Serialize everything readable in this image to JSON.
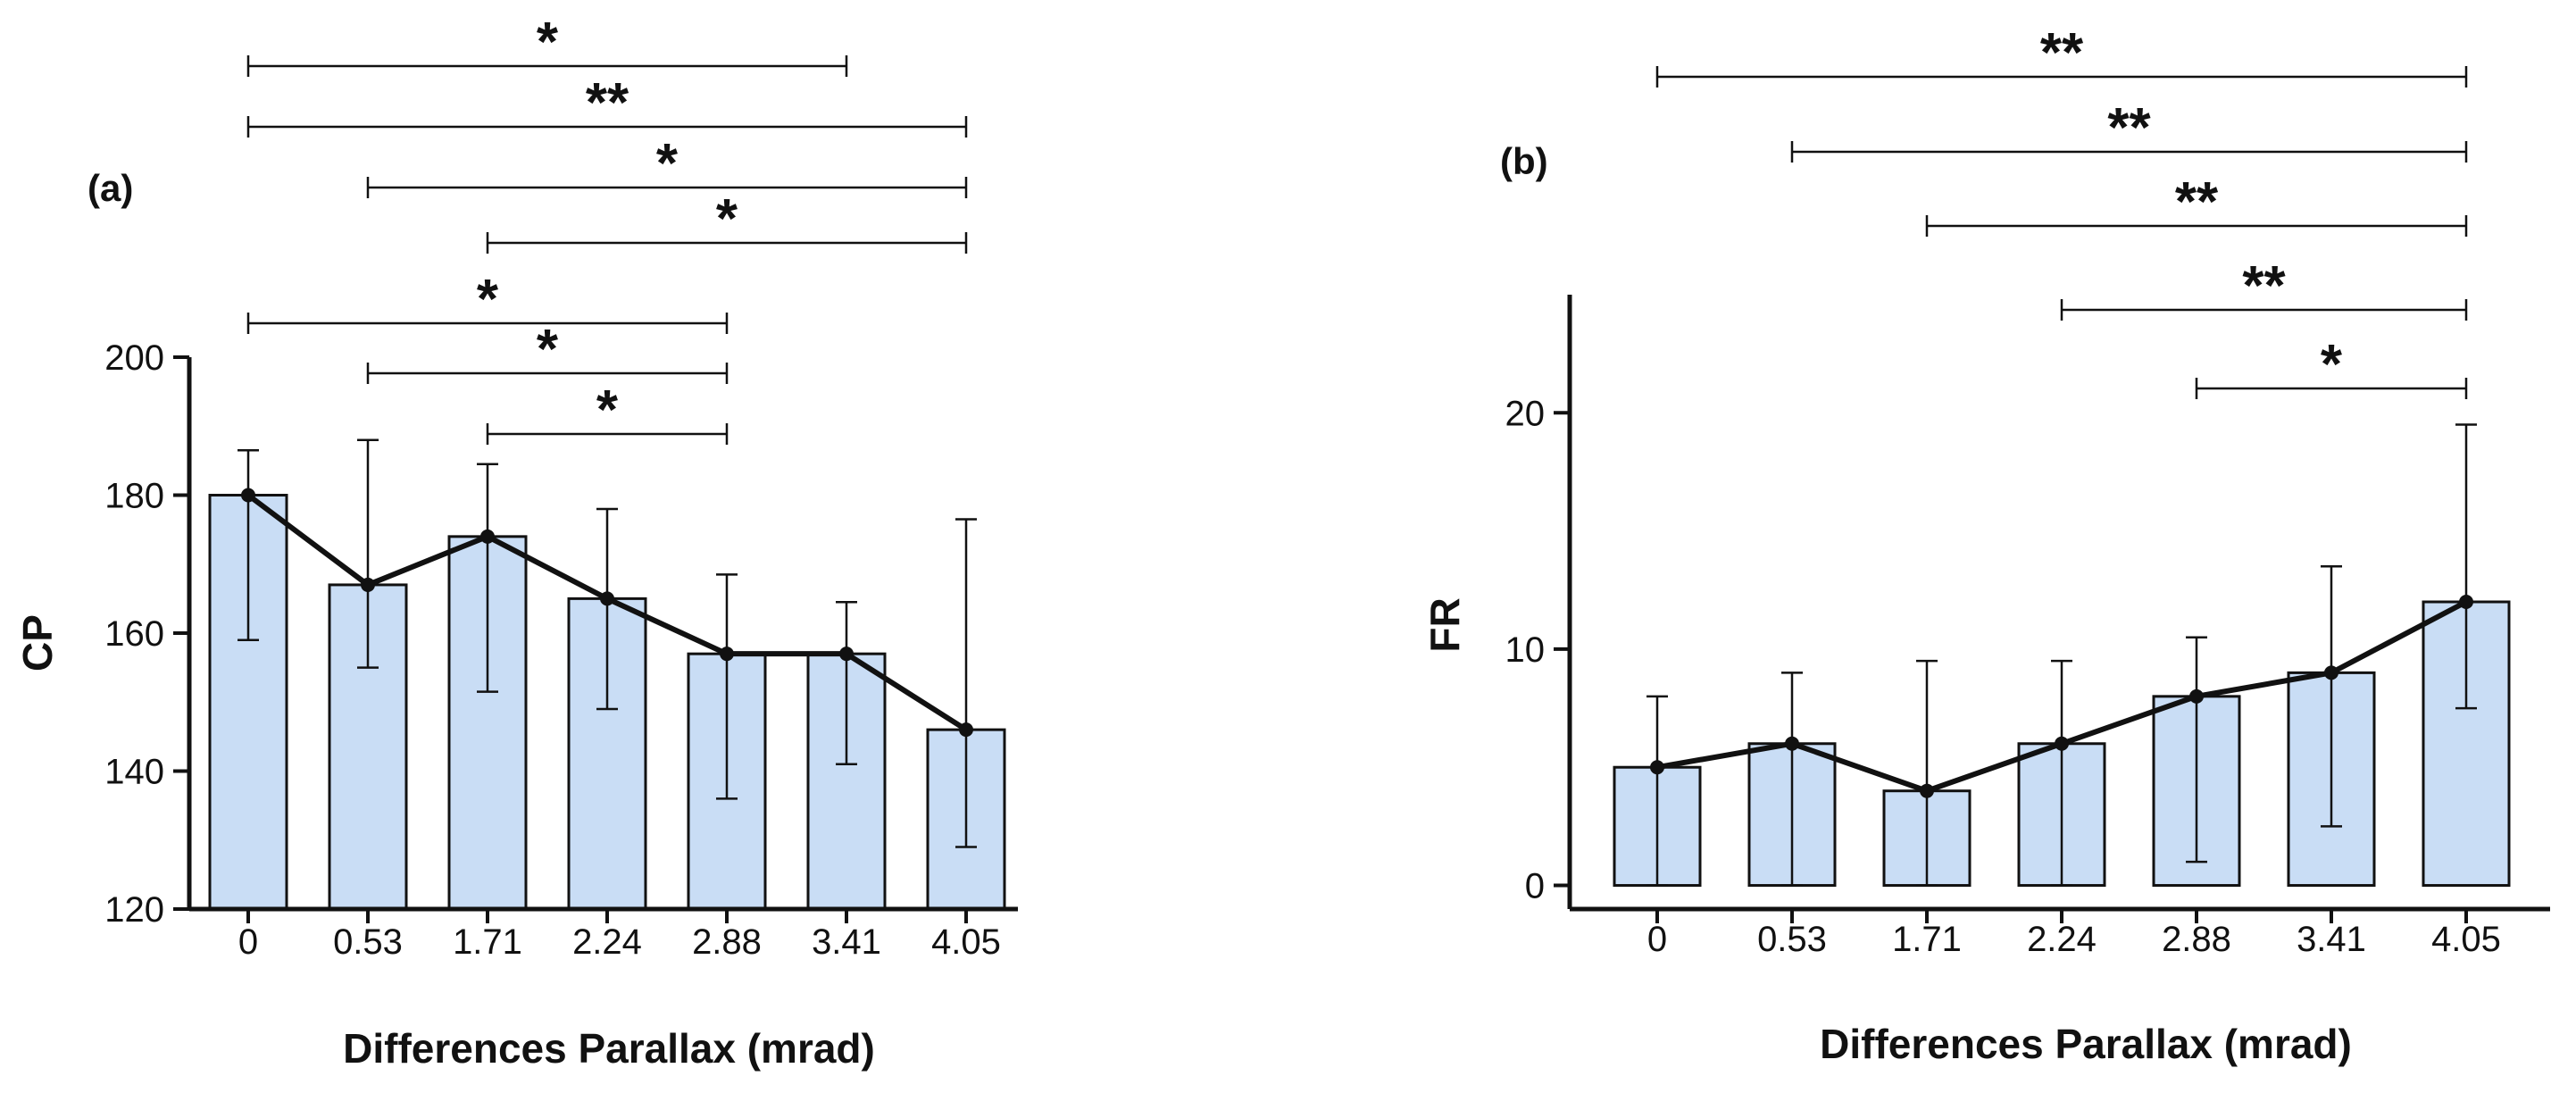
{
  "chart_data": [
    {
      "type": "bar",
      "panel_label": "(a)",
      "xlabel": "Differences Parallax (mrad)",
      "ylabel": "CP",
      "categories": [
        "0",
        "0.53",
        "1.71",
        "2.24",
        "2.88",
        "3.41",
        "4.05"
      ],
      "values": [
        180,
        167,
        174,
        165,
        157,
        157,
        146
      ],
      "error_low": [
        159,
        155,
        151.5,
        149,
        136,
        141,
        129
      ],
      "error_high": [
        186.5,
        188,
        184.5,
        178,
        168.5,
        164.5,
        176.5
      ],
      "ylim": [
        120,
        200
      ],
      "yticks": [
        120,
        140,
        160,
        180,
        200
      ],
      "ytick_labels": [
        "120",
        "140",
        "160",
        "180",
        "200"
      ],
      "bar_color": "#c9ddf5",
      "line_overlay": true,
      "significance": [
        {
          "from": 0,
          "to": 5,
          "label": "*"
        },
        {
          "from": 0,
          "to": 6,
          "label": "**"
        },
        {
          "from": 1,
          "to": 6,
          "label": "*"
        },
        {
          "from": 2,
          "to": 6,
          "label": "*"
        },
        {
          "from": 0,
          "to": 4,
          "label": "*"
        },
        {
          "from": 1,
          "to": 4,
          "label": "*"
        },
        {
          "from": 2,
          "to": 4,
          "label": "*"
        }
      ]
    },
    {
      "type": "bar",
      "panel_label": "(b)",
      "xlabel": "Differences Parallax (mrad)",
      "ylabel": "FR",
      "categories": [
        "0",
        "0.53",
        "1.71",
        "2.24",
        "2.88",
        "3.41",
        "4.05"
      ],
      "values": [
        5,
        6,
        4,
        6,
        8,
        9,
        12
      ],
      "error_low": [
        0,
        0,
        0,
        0,
        1,
        2.5,
        7.5
      ],
      "error_high": [
        8,
        9,
        9.5,
        9.5,
        10.5,
        13.5,
        19.5
      ],
      "ylim": [
        -1,
        25
      ],
      "yticks": [
        0,
        10,
        20
      ],
      "ytick_labels": [
        "0",
        "10",
        "20"
      ],
      "bar_color": "#c9ddf5",
      "line_overlay": true,
      "significance": [
        {
          "from": 0,
          "to": 6,
          "label": "**"
        },
        {
          "from": 1,
          "to": 6,
          "label": "**"
        },
        {
          "from": 2,
          "to": 6,
          "label": "**"
        },
        {
          "from": 3,
          "to": 6,
          "label": "**"
        },
        {
          "from": 4,
          "to": 6,
          "label": "*"
        }
      ]
    }
  ]
}
